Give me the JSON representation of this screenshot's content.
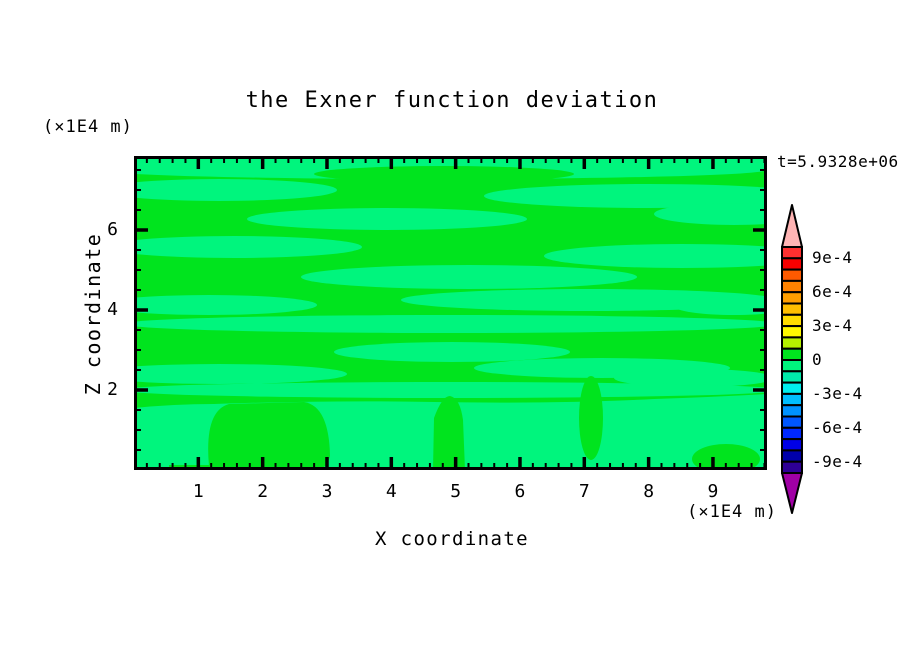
{
  "figure": {
    "title": "the Exner function deviation",
    "time_label": "t=5.9328e+06"
  },
  "axes": {
    "x": {
      "label": "X coordinate",
      "unit_label": "(×1E4 m)",
      "major_ticks": [
        "1",
        "2",
        "3",
        "4",
        "5",
        "6",
        "7",
        "8",
        "9"
      ],
      "minor_tick_step": 0.2,
      "range": [
        0,
        9.84
      ]
    },
    "y": {
      "label": "Z coordinate",
      "unit_label": "(×1E4 m)",
      "major_ticks": [
        "2",
        "4",
        "6"
      ],
      "minor_tick_step": 0.5,
      "range": [
        0,
        7.85
      ]
    }
  },
  "colorbar": {
    "labels": [
      "9e-4",
      "6e-4",
      "3e-4",
      "0",
      "-3e-4",
      "-6e-4",
      "-9e-4"
    ],
    "label_boundaries": [
      1,
      4,
      7,
      10,
      13,
      16,
      19
    ],
    "segment_colors": [
      "#FF3030",
      "#F80000",
      "#FF5A00",
      "#FF8200",
      "#FF9E00",
      "#FFBE00",
      "#FFDC00",
      "#FFF800",
      "#B4F000",
      "#00E41E",
      "#00F57D",
      "#00EBAA",
      "#00EEEE",
      "#00BEFF",
      "#0092FF",
      "#0057FF",
      "#0028FF",
      "#0000E6",
      "#0000AA",
      "#2E0096"
    ],
    "over_color": "#FFB4B4",
    "under_color": "#A000A5",
    "outline_color": "#000000"
  },
  "chart_data": {
    "type": "contour",
    "title": "the Exner function deviation",
    "xlabel": "X coordinate",
    "ylabel": "Z coordinate",
    "axis_scale_factor": "×1E4 m",
    "x_range": [
      0,
      9.84
    ],
    "z_range": [
      0,
      7.85
    ],
    "time": "t=5.9328e+06",
    "contour_interval": 0.0001,
    "shade_level_min": -0.001,
    "shade_level_max": 0.001,
    "field_note": "visible field values lie between -1e-4 and +1e-4; pattern = horizontal wavy bands aloft, broad blobs near the lower boundary",
    "bands": [
      {
        "value_range": [
          0,
          0.0001
        ],
        "color": "#00E41E",
        "coverage": "dark-green background of upper region"
      },
      {
        "value_range": [
          -0.0001,
          0
        ],
        "color": "#00F57D",
        "coverage": "light-green streaks and lower-boundary region"
      }
    ],
    "light_regions": {
      "rects": [
        [
          0,
          0,
          633,
          13
        ]
      ],
      "ellipses": [
        [
          300,
          14,
          332,
          9
        ],
        [
          85,
          34,
          118,
          11
        ],
        [
          515,
          40,
          165,
          12
        ],
        [
          600,
          58,
          80,
          11
        ],
        [
          253,
          63,
          140,
          11
        ],
        [
          100,
          91,
          128,
          11
        ],
        [
          548,
          100,
          138,
          12
        ],
        [
          335,
          121,
          168,
          12
        ],
        [
          75,
          149,
          108,
          10
        ],
        [
          455,
          144,
          188,
          11
        ],
        [
          317,
          168,
          328,
          9
        ],
        [
          600,
          150,
          60,
          9
        ],
        [
          318,
          196,
          118,
          10
        ],
        [
          85,
          218,
          128,
          10
        ],
        [
          468,
          212,
          128,
          10
        ],
        [
          560,
          222,
          80,
          9
        ],
        [
          317,
          234,
          332,
          8
        ]
      ],
      "paths": [
        "M0,314 L0,252 Q40,248 80,248 Q200,244 300,246 Q420,248 520,243 Q580,241 633,238 L633,314 Z"
      ]
    },
    "dark_overlays": {
      "ellipses": [
        [
          310,
          18,
          130,
          8
        ],
        [
          457,
          262,
          12,
          42
        ],
        [
          592,
          303,
          34,
          15
        ]
      ],
      "rects": [
        [
          35,
          309,
          150,
          5
        ]
      ],
      "paths": [
        "M75,310 Q70,255 95,248 L170,246 Q195,250 196,300 Q193,314 180,314 L90,314 Q78,314 75,310 Z",
        "M299,314 L300,262 Q308,240 316,240 Q326,242 329,264 L331,314 Z"
      ]
    }
  }
}
